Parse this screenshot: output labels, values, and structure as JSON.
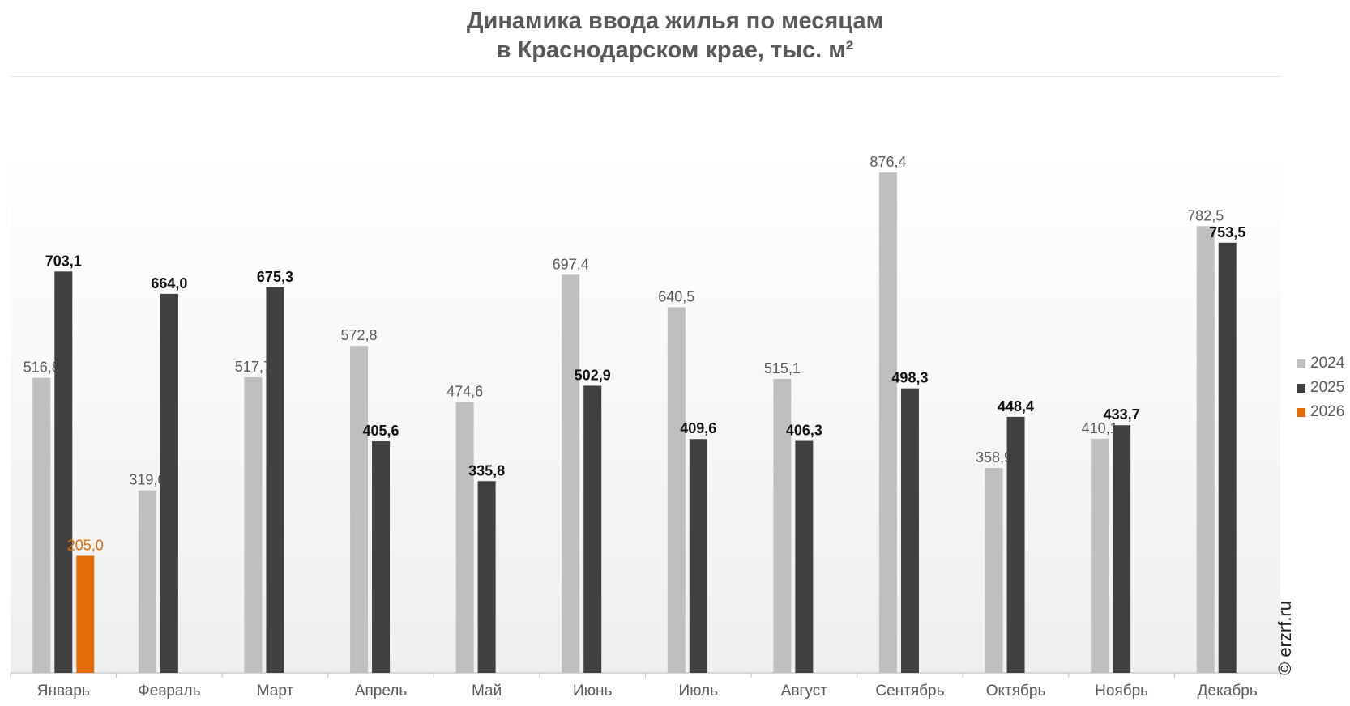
{
  "title": [
    "Динамика ввода жилья по месяцам",
    "в Краснодарском крае, тыс. м²"
  ],
  "watermark": "© erzrf.ru",
  "chart_data": {
    "type": "bar",
    "title": "Динамика ввода жилья по месяцам в Краснодарском крае, тыс. м²",
    "categories": [
      "Январь",
      "Февраль",
      "Март",
      "Апрель",
      "Май",
      "Июнь",
      "Июль",
      "Август",
      "Сентябрь",
      "Октябрь",
      "Ноябрь",
      "Декабрь"
    ],
    "series": [
      {
        "name": "2024",
        "color": "#bfbfbf",
        "label_color": "#595959",
        "label_bold": false,
        "values": [
          516.8,
          319.6,
          517.7,
          572.8,
          474.6,
          697.4,
          640.5,
          515.1,
          876.4,
          358.9,
          410.1,
          782.5
        ],
        "labels": [
          "516,8",
          "319,6",
          "517,7",
          "572,8",
          "474,6",
          "697,4",
          "640,5",
          "515,1",
          "876,4",
          "358,9",
          "410,1",
          "782,5"
        ]
      },
      {
        "name": "2025",
        "color": "#404040",
        "label_color": "#111111",
        "label_bold": true,
        "values": [
          703.1,
          664.0,
          675.3,
          405.6,
          335.8,
          502.9,
          409.6,
          406.3,
          498.3,
          448.4,
          433.7,
          753.5
        ],
        "labels": [
          "703,1",
          "664,0",
          "675,3",
          "405,6",
          "335,8",
          "502,9",
          "409,6",
          "406,3",
          "498,3",
          "448,4",
          "433,7",
          "753,5"
        ]
      },
      {
        "name": "2026",
        "color": "#e36c09",
        "label_color": "#e36c09",
        "label_bold": false,
        "values": [
          205.0,
          null,
          null,
          null,
          null,
          null,
          null,
          null,
          null,
          null,
          null,
          null
        ],
        "labels": [
          "205,0",
          "",
          "",
          "",
          "",
          "",
          "",
          "",
          "",
          "",
          "",
          ""
        ]
      }
    ],
    "ylim": [
      0,
      1000
    ],
    "grid": false,
    "legend_position": "right"
  }
}
